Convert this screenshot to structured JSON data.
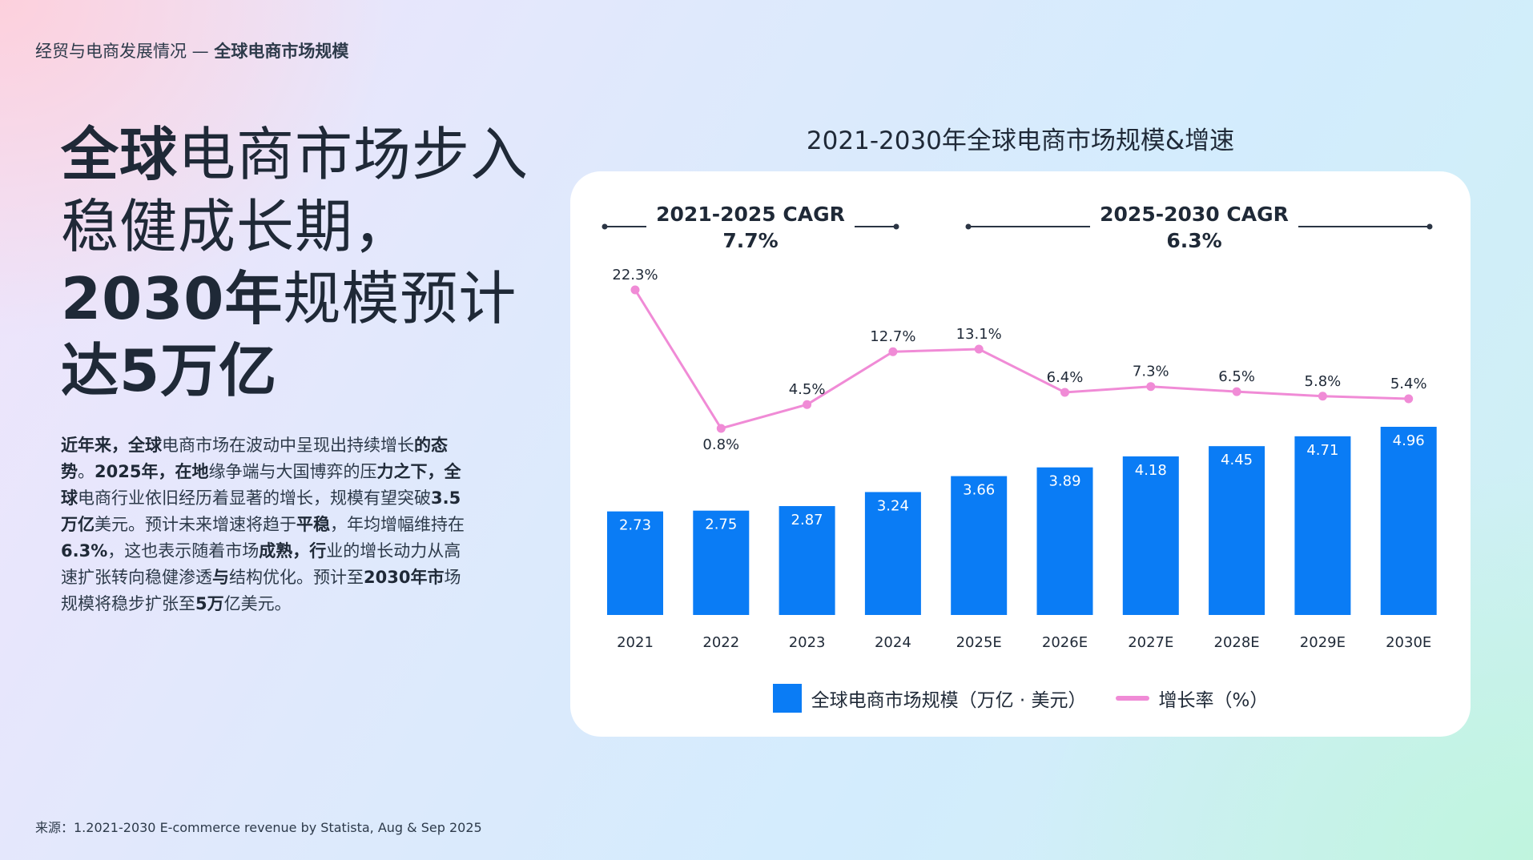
{
  "breadcrumb": {
    "section": "经贸与电商发展情况 — ",
    "topic": "全球电商市场规模"
  },
  "headline": {
    "line1_bold": "全球",
    "line1_rest": "电商市场步入",
    "line2": "稳健成长期，",
    "line3_bold": "2030年",
    "line3_rest": "规模预计",
    "line4_bold": "达5万亿"
  },
  "body": {
    "s1": "近年来，全球",
    "s2": "电商市场在波动中呈现出持续增长",
    "s3": "的态势",
    "s4": "。",
    "s5": "2025年，在地",
    "s6": "缘争端与大国博弈的压",
    "s7": "力之下，全球",
    "s8": "电商行业依旧经历着显著的增长，规模有望突破",
    "s9": "3.5万亿",
    "s10": "美元。预计未来增速将趋于",
    "s11": "平稳",
    "s12": "，年均增幅维持在",
    "s13": "6.3%",
    "s14": "，这也表示随着市场",
    "s15": "成熟，行",
    "s16": "业的增长动力从高速扩张转向稳健渗透",
    "s17": "与",
    "s18": "结构优化。预计至",
    "s19": "2030年市",
    "s20": "场规模将稳步扩张至",
    "s21": "5万",
    "s22": "亿美元。"
  },
  "source": "来源：1.2021-2030 E-commerce revenue  by Statista, Aug & Sep 2025",
  "colors": {
    "bar": "#0a7cf5",
    "line": "#f08bd6",
    "text": "#1f2937"
  },
  "chart_data": {
    "type": "bar",
    "title": "2021-2030年全球电商市场规模&增速",
    "categories": [
      "2021",
      "2022",
      "2023",
      "2024",
      "2025E",
      "2026E",
      "2027E",
      "2028E",
      "2029E",
      "2030E"
    ],
    "series": [
      {
        "name": "全球电商市场规模（万亿 · 美元）",
        "type": "bar",
        "values": [
          2.73,
          2.75,
          2.87,
          3.24,
          3.66,
          3.89,
          4.18,
          4.45,
          4.71,
          4.96
        ],
        "labels": [
          "2.73",
          "2.75",
          "2.87",
          "3.24",
          "3.66",
          "3.89",
          "4.18",
          "4.45",
          "4.71",
          "4.96"
        ]
      },
      {
        "name": "增长率（%）",
        "type": "line",
        "values": [
          22.3,
          0.8,
          4.5,
          12.7,
          13.1,
          6.4,
          7.3,
          6.5,
          5.8,
          5.4
        ],
        "labels": [
          "22.3%",
          "0.8%",
          "4.5%",
          "12.7%",
          "13.1%",
          "6.4%",
          "7.3%",
          "6.5%",
          "5.8%",
          "5.4%"
        ]
      }
    ],
    "annotations": [
      {
        "line1": "2021-2025 CAGR",
        "line2": "7.7%"
      },
      {
        "line1": "2025-2030 CAGR",
        "line2": "6.3%"
      }
    ],
    "legend": {
      "position": "bottom"
    },
    "grid": false
  }
}
